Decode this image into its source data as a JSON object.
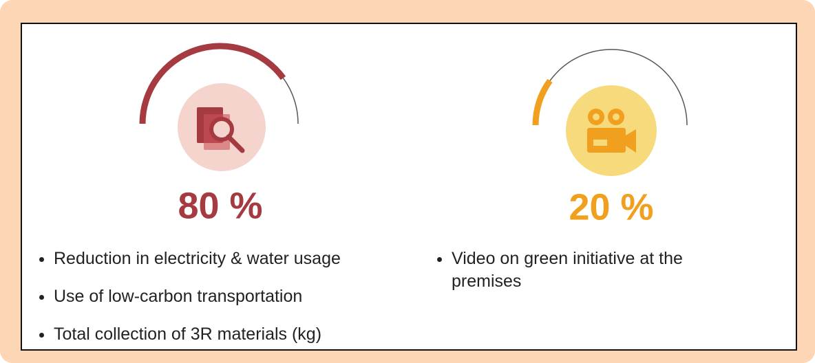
{
  "panels": [
    {
      "value": 80,
      "value_label": "80 %",
      "color": "#a53a40",
      "items": [
        "Reduction in electricity & water usage",
        "Use of low-carbon transportation",
        "Total collection of 3R materials (kg)"
      ]
    },
    {
      "value": 20,
      "value_label": "20 %",
      "color": "#f0a01e",
      "items": [
        "Video on green initiative at the premises"
      ]
    }
  ]
}
